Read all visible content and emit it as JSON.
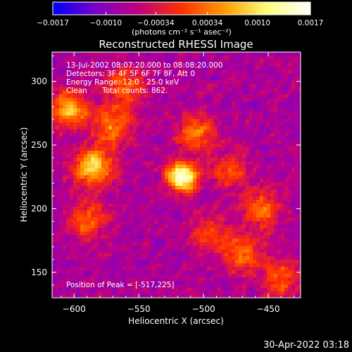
{
  "chart_data": {
    "type": "heatmap",
    "title": "Reconstructed RHESSI Image",
    "xlabel": "Heliocentric X (arcsec)",
    "ylabel": "Heliocentric Y (arcsec)",
    "xlim": [
      -617,
      -425
    ],
    "ylim": [
      130,
      323
    ],
    "x_ticks": [
      -600,
      -550,
      -500,
      -450
    ],
    "x_tick_labels": [
      "−600",
      "−550",
      "−500",
      "−450"
    ],
    "y_ticks": [
      150,
      200,
      250,
      300
    ],
    "y_tick_labels": [
      "150",
      "200",
      "250",
      "300"
    ],
    "colorbar": {
      "min": -0.0017,
      "max": 0.0017,
      "ticks": [
        -0.0017,
        -0.001,
        -0.00034,
        0.00034,
        0.001,
        0.0017
      ],
      "tick_labels": [
        "−0.0017",
        "−0.0010",
        "−0.00034",
        "0.00034",
        "0.0010",
        "0.0017"
      ],
      "unit_label": "(photons cm⁻² s⁻¹ asec⁻²)",
      "colors": [
        "#0000ff",
        "#7a00c8",
        "#c00080",
        "#ff3000",
        "#ff9c00",
        "#ffff80",
        "#ffffff"
      ]
    },
    "sources": [
      {
        "x": -517,
        "y": 225,
        "peak": 1.0
      },
      {
        "x": -585,
        "y": 233,
        "peak": 0.7
      },
      {
        "x": -603,
        "y": 278,
        "peak": 0.6
      },
      {
        "x": -570,
        "y": 265,
        "peak": 0.45
      },
      {
        "x": -560,
        "y": 295,
        "peak": 0.4
      },
      {
        "x": -470,
        "y": 165,
        "peak": 0.45
      },
      {
        "x": -455,
        "y": 200,
        "peak": 0.4
      },
      {
        "x": -440,
        "y": 145,
        "peak": 0.4
      },
      {
        "x": -590,
        "y": 190,
        "peak": 0.4
      },
      {
        "x": -495,
        "y": 180,
        "peak": 0.35
      },
      {
        "x": -505,
        "y": 260,
        "peak": 0.45
      },
      {
        "x": -480,
        "y": 230,
        "peak": 0.35
      }
    ],
    "annotations": {
      "time_range": "13-Jul-2002 08:07:20.000 to 08:08:20.000",
      "detectors": "Detectors: 3F 4F 5F 6F 7F 8F, Att 0",
      "energy": "Energy Range: 12.0 - 25.0 keV",
      "method": "Clean",
      "total_counts": "Total counts: 862.",
      "peak_position": "Position of Peak = [-517,225]"
    }
  },
  "footer": {
    "timestamp": "30-Apr-2022 03:18"
  }
}
